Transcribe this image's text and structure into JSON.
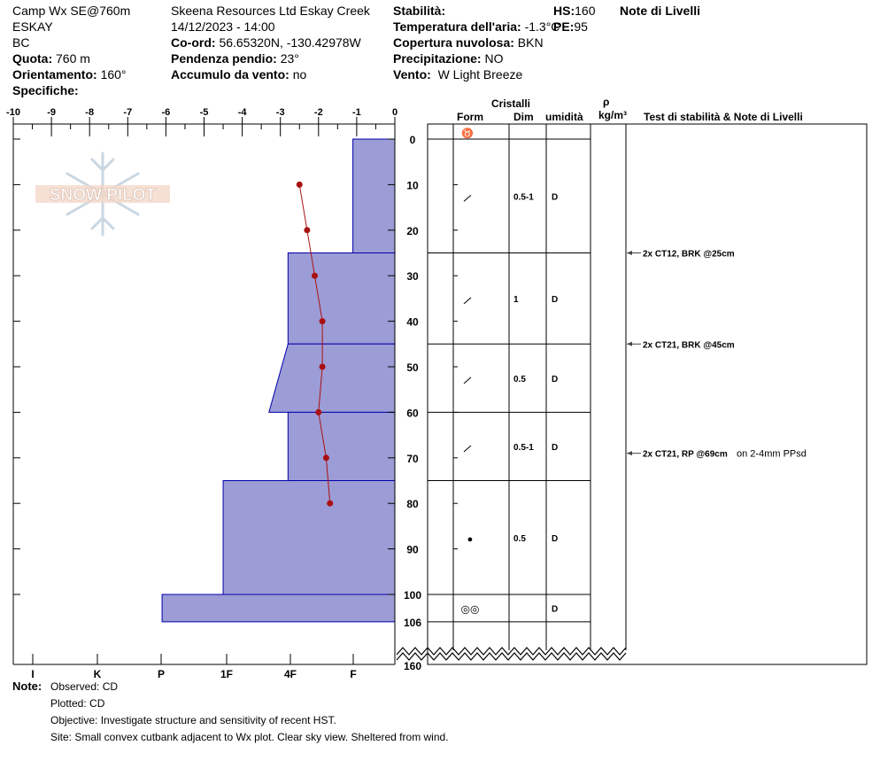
{
  "header": {
    "col1": {
      "line1": "Camp Wx SE@760m",
      "line2": "ESKAY",
      "line3": "BC",
      "quota_label": "Quota:",
      "quota_value": "760 m",
      "orient_label": "Orientamento:",
      "orient_value": "160°",
      "spec_label": "Specifiche:"
    },
    "col2": {
      "line1": "Skeena Resources Ltd Eskay Creek",
      "line2": "14/12/2023 - 14:00",
      "coord_label": "Co-ord:",
      "coord_value": "56.65320N, -130.42978W",
      "slope_label": "Pendenza pendio:",
      "slope_value": "23°",
      "wind_label": "Accumulo da vento:",
      "wind_value": "no"
    },
    "col3": {
      "stab_label": "Stabilità:",
      "temp_label": "Temperatura dell'aria:",
      "temp_value": "-1.3°C",
      "cloud_label": "Copertura nuvolosa:",
      "cloud_value": "BKN",
      "precip_label": "Precipitazione:",
      "precip_value": "NO",
      "vento_label": "Vento:",
      "vento_value": "W Light Breeze",
      "hs_label": "HS:",
      "hs_value": "160",
      "pe_label": "PE:",
      "pe_value": "95"
    },
    "col4": {
      "notes_label": "Note di Livelli"
    }
  },
  "logo": {
    "text": "SNOW PILOT"
  },
  "table_headers": {
    "crystals": "Cristalli",
    "form": "Form",
    "dim": "Dim",
    "humidity": "umidità",
    "rho": "ρ",
    "density_unit": "kg/m³",
    "tests": "Test di stabilità & Note di Livelli"
  },
  "footer": {
    "note_label": "Note:",
    "observed": "Observed: CD",
    "plotted": "Plotted: CD",
    "objective": "Objective: Investigate structure and sensitivity of recent HST.",
    "site": "Site: Small convex cutbank adjacent to Wx plot. Clear sky view. Sheltered from wind."
  },
  "colors": {
    "hardness_fill": "#9c9cd6",
    "hardness_stroke": "#0000aa",
    "temp_line": "#aa1111"
  },
  "chart_data": {
    "type": "snow-profile",
    "temperature_axis": {
      "ticks": [
        "-10",
        "-9",
        "-8",
        "-7",
        "-6",
        "-5",
        "-4",
        "-3",
        "-2",
        "-1",
        "0"
      ],
      "range": [
        -10,
        0
      ]
    },
    "hardness_axis": {
      "labels": [
        "I",
        "K",
        "P",
        "1F",
        "4F",
        "F"
      ]
    },
    "depth_axis": {
      "ticks": [
        "0",
        "10",
        "20",
        "30",
        "40",
        "50",
        "60",
        "70",
        "80",
        "90",
        "100",
        "106"
      ],
      "bottom_label": "160",
      "range": [
        0,
        106
      ]
    },
    "layers": [
      {
        "top": 0,
        "bottom": 25,
        "hardness_top": -1.1,
        "hardness_bottom": -1.1,
        "form": "/",
        "dim": "0.5-1",
        "wet": "D"
      },
      {
        "top": 25,
        "bottom": 45,
        "hardness_top": -2.8,
        "hardness_bottom": -2.8,
        "form": "/",
        "dim": "1",
        "wet": "D"
      },
      {
        "top": 45,
        "bottom": 60,
        "hardness_top": -2.8,
        "hardness_bottom": -3.3,
        "form": "/",
        "dim": "0.5",
        "wet": "D"
      },
      {
        "top": 60,
        "bottom": 75,
        "hardness_top": -2.8,
        "hardness_bottom": -2.8,
        "form": "/",
        "dim": "0.5-1",
        "wet": "D"
      },
      {
        "top": 75,
        "bottom": 100,
        "hardness_top": -4.5,
        "hardness_bottom": -4.5,
        "form": "●",
        "dim": "0.5",
        "wet": "D"
      },
      {
        "top": 100,
        "bottom": 106,
        "hardness_top": -6.1,
        "hardness_bottom": -6.1,
        "form": "◎◎",
        "dim": "",
        "wet": "D"
      }
    ],
    "surface_form": "♉",
    "temperature_profile": [
      {
        "depth": 10,
        "temp": -2.5
      },
      {
        "depth": 20,
        "temp": -2.3
      },
      {
        "depth": 30,
        "temp": -2.1
      },
      {
        "depth": 40,
        "temp": -1.9
      },
      {
        "depth": 50,
        "temp": -1.9
      },
      {
        "depth": 60,
        "temp": -2.0
      },
      {
        "depth": 70,
        "temp": -1.8
      },
      {
        "depth": 80,
        "temp": -1.7
      }
    ],
    "stability_tests": [
      {
        "depth": 25,
        "label": "2x CT12, BRK @25cm",
        "note": ""
      },
      {
        "depth": 45,
        "label": "2x CT21, BRK @45cm",
        "note": ""
      },
      {
        "depth": 69,
        "label": "2x CT21, RP @69cm",
        "note": "on 2-4mm PPsd"
      }
    ]
  }
}
